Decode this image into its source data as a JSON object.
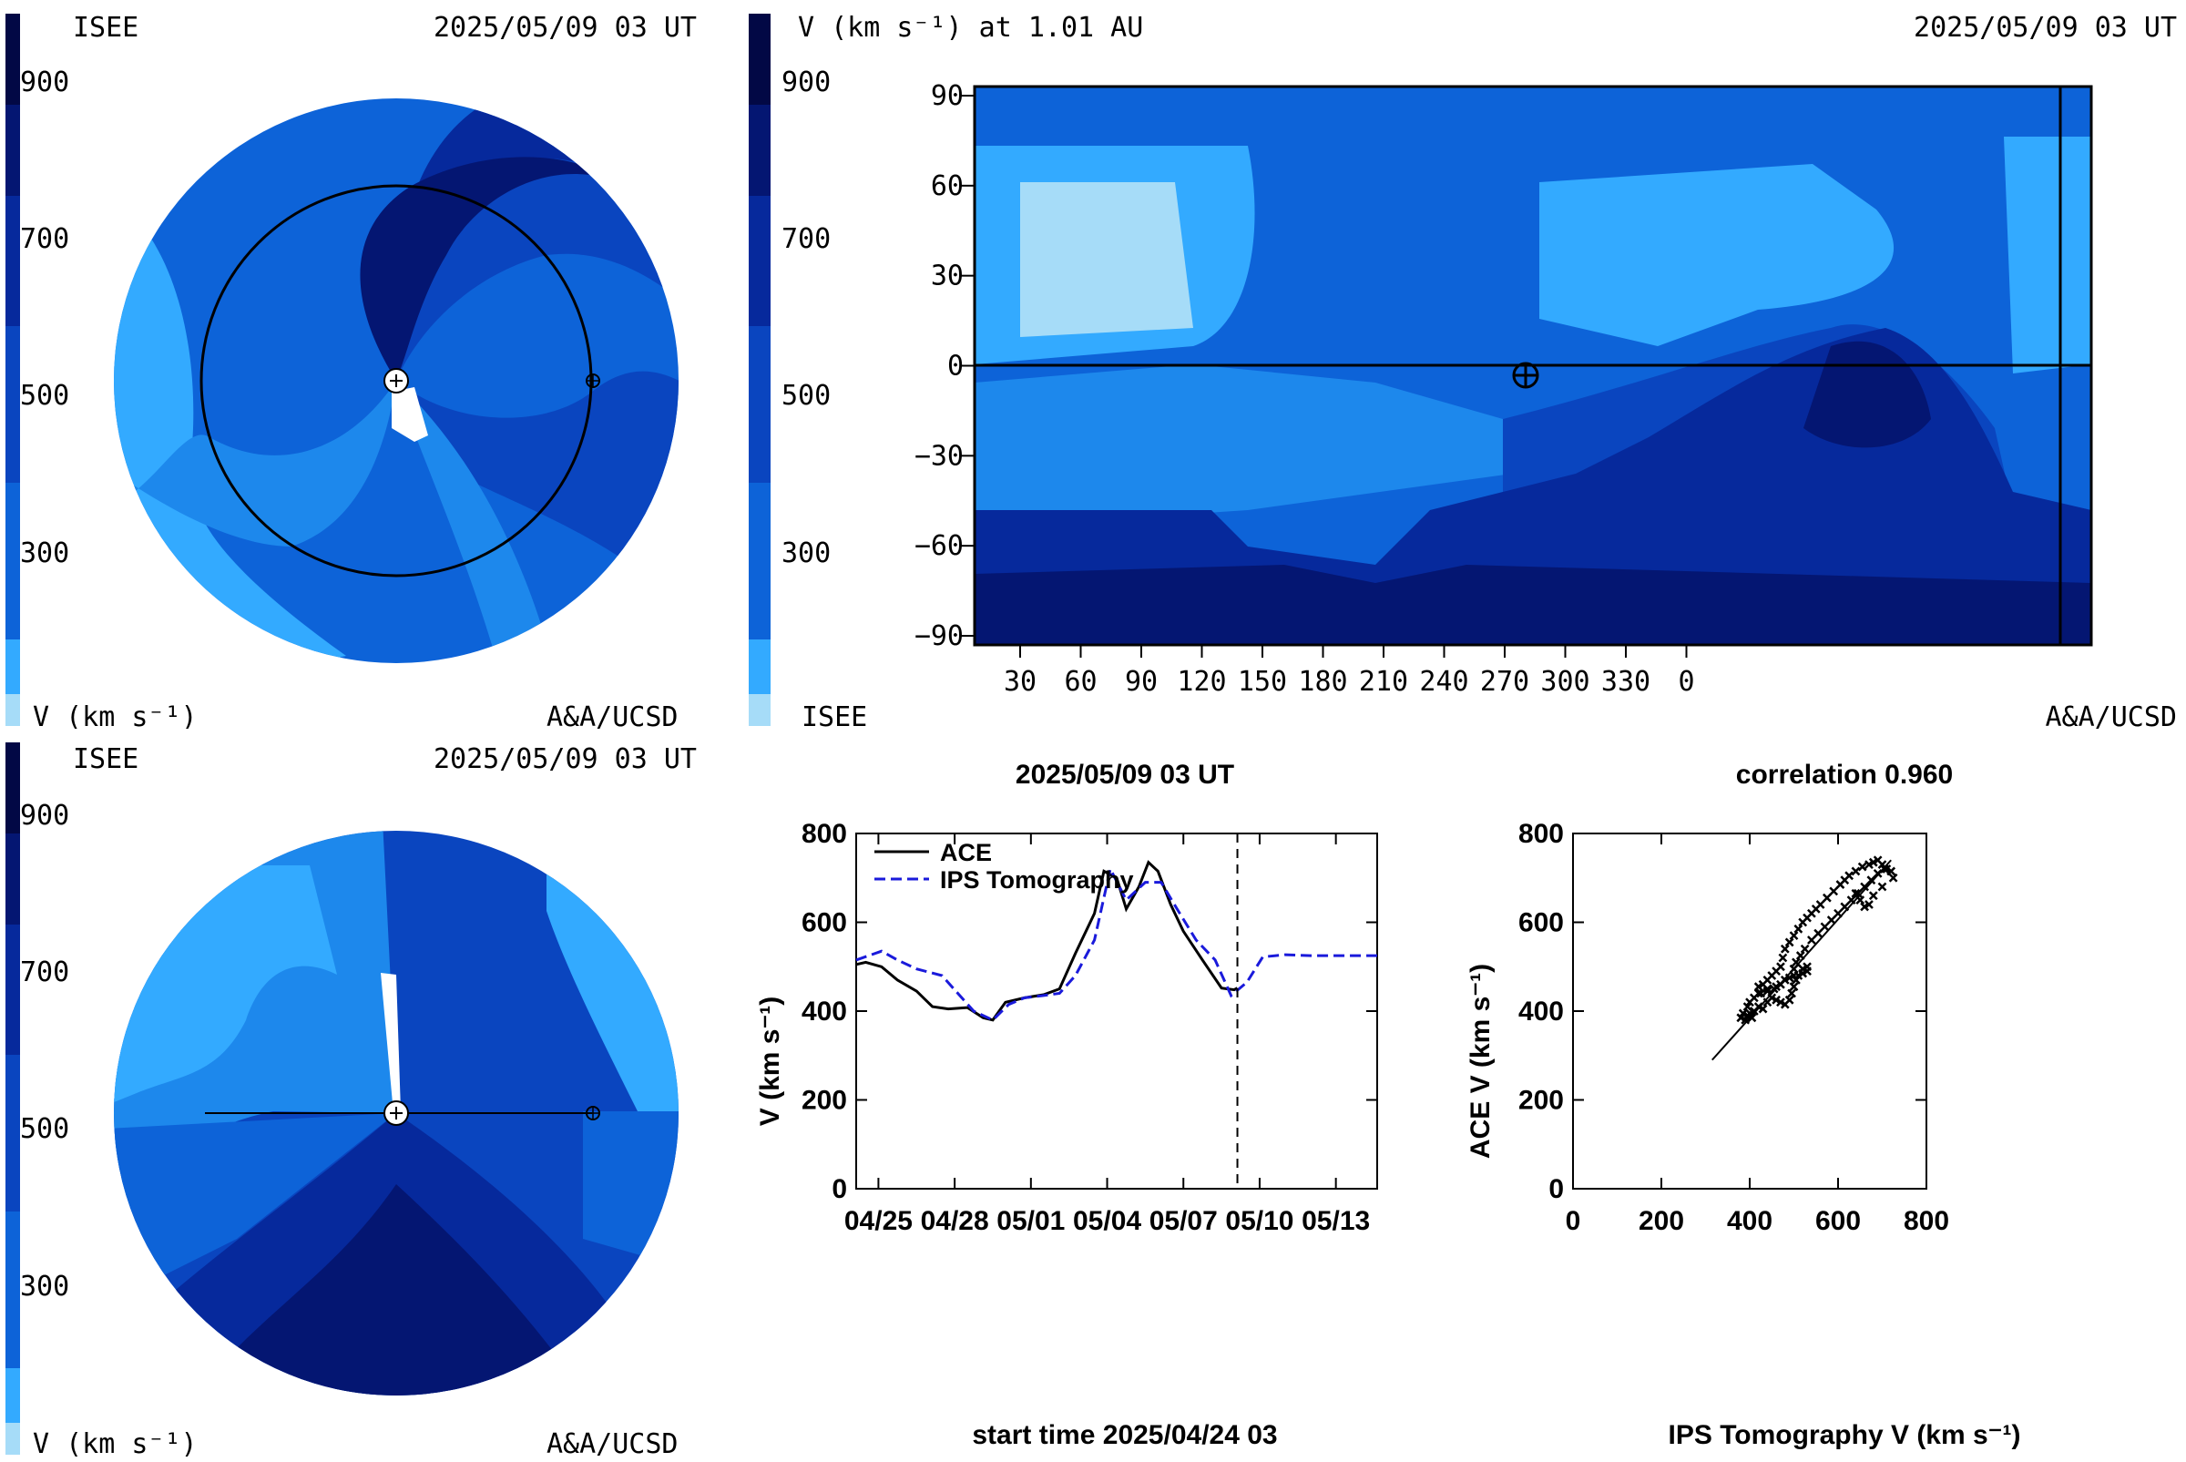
{
  "colorbar_ticks": [
    "900",
    "700",
    "500",
    "300"
  ],
  "colors": {
    "b0": "#a6dcf8",
    "b1": "#33aaff",
    "b2": "#1d88ec",
    "b3": "#0d63d8",
    "b4": "#0a45bf",
    "b5": "#06299c",
    "b6": "#041672",
    "b7": "#020845",
    "ace": "#000000",
    "ips": "#1a1adb"
  },
  "polar_top": {
    "label_left": "ISEE",
    "timestamp": "2025/05/09 03 UT",
    "colorbar_label": "V (km s⁻¹)",
    "credit": "A&A/UCSD"
  },
  "polar_bottom": {
    "label_left": "ISEE",
    "timestamp": "2025/05/09 03 UT",
    "colorbar_label": "V (km s⁻¹)",
    "credit": "A&A/UCSD"
  },
  "map": {
    "title": "V (km s⁻¹) at 1.01 AU",
    "timestamp": "2025/05/09 03 UT",
    "label_left": "ISEE",
    "credit": "A&A/UCSD",
    "yticks": [
      "90",
      "60",
      "30",
      "0",
      "−30",
      "−60",
      "−90"
    ],
    "xticks": [
      "30",
      "60",
      "90",
      "120",
      "150",
      "180",
      "210",
      "240",
      "270",
      "300",
      "330",
      "0"
    ]
  },
  "chart_data": [
    {
      "type": "line",
      "title": "2025/05/09 03 UT",
      "xlabel": "start time 2025/04/24 03",
      "ylabel": "V (km s⁻¹)",
      "ylim": [
        0,
        800
      ],
      "xlim_days": [
        0,
        20.5
      ],
      "xtick_labels": [
        "04/25",
        "04/28",
        "05/01",
        "05/04",
        "05/07",
        "05/10",
        "05/13"
      ],
      "yticks": [
        "0",
        "200",
        "400",
        "600",
        "800"
      ],
      "current_time_marker": "2025/05/09 03",
      "legend": [
        "ACE",
        "IPS Tomography"
      ],
      "series": [
        {
          "name": "ACE",
          "style": "solid",
          "x": [
            "04/24 03",
            "04/24 12",
            "04/25 03",
            "04/25 18",
            "04/26 12",
            "04/27 03",
            "04/27 18",
            "04/28 12",
            "04/29 03",
            "04/29 12",
            "04/30 00",
            "04/30 18",
            "05/01 12",
            "05/02 03",
            "05/02 18",
            "05/03 12",
            "05/03 21",
            "05/04 09",
            "05/04 18",
            "05/05 06",
            "05/05 15",
            "05/06 00",
            "05/06 12",
            "05/07 00",
            "05/07 18",
            "05/08 12",
            "05/09 00",
            "05/09 03"
          ],
          "values": [
            505,
            510,
            500,
            470,
            445,
            410,
            405,
            408,
            385,
            380,
            420,
            430,
            437,
            450,
            530,
            620,
            715,
            700,
            630,
            680,
            735,
            715,
            640,
            580,
            515,
            452,
            448,
            452
          ]
        },
        {
          "name": "IPS Tomography",
          "style": "dashed",
          "x": [
            "04/24 03",
            "04/25 03",
            "04/25 18",
            "04/26 12",
            "04/27 12",
            "04/28 03",
            "04/28 18",
            "04/29 12",
            "04/30 03",
            "04/30 18",
            "05/01 12",
            "05/02 03",
            "05/02 18",
            "05/03 12",
            "05/04 03",
            "05/04 18",
            "05/05 12",
            "05/06 03",
            "05/06 18",
            "05/07 12",
            "05/08 06",
            "05/08 21",
            "05/09 12",
            "05/10 03",
            "05/11 00",
            "05/12 00",
            "05/13 00",
            "05/14 15"
          ],
          "values": [
            515,
            535,
            515,
            495,
            480,
            440,
            400,
            380,
            415,
            430,
            435,
            440,
            480,
            560,
            720,
            650,
            690,
            690,
            630,
            560,
            515,
            435,
            465,
            522,
            527,
            525,
            525,
            525
          ]
        }
      ]
    },
    {
      "type": "scatter",
      "title": "correlation 0.960",
      "xlabel": "IPS Tomography V (km s⁻¹)",
      "ylabel": "ACE V (km s⁻¹)",
      "xlim": [
        0,
        800
      ],
      "ylim": [
        0,
        800
      ],
      "xticks": [
        "0",
        "200",
        "400",
        "600",
        "800"
      ],
      "yticks": [
        "0",
        "200",
        "400",
        "600",
        "800"
      ],
      "points": [
        [
          380,
          385
        ],
        [
          385,
          395
        ],
        [
          390,
          380
        ],
        [
          395,
          390
        ],
        [
          400,
          395
        ],
        [
          405,
          385
        ],
        [
          410,
          400
        ],
        [
          420,
          410
        ],
        [
          430,
          405
        ],
        [
          440,
          420
        ],
        [
          450,
          430
        ],
        [
          460,
          425
        ],
        [
          470,
          420
        ],
        [
          480,
          415
        ],
        [
          490,
          425
        ],
        [
          495,
          440
        ],
        [
          500,
          455
        ],
        [
          505,
          470
        ],
        [
          510,
          480
        ],
        [
          520,
          495
        ],
        [
          530,
          500
        ],
        [
          530,
          490
        ],
        [
          520,
          485
        ],
        [
          500,
          480
        ],
        [
          480,
          470
        ],
        [
          460,
          455
        ],
        [
          440,
          450
        ],
        [
          425,
          440
        ],
        [
          410,
          430
        ],
        [
          400,
          420
        ],
        [
          395,
          410
        ],
        [
          420,
          455
        ],
        [
          430,
          460
        ],
        [
          440,
          470
        ],
        [
          450,
          480
        ],
        [
          460,
          490
        ],
        [
          470,
          500
        ],
        [
          475,
          520
        ],
        [
          480,
          540
        ],
        [
          490,
          555
        ],
        [
          500,
          570
        ],
        [
          510,
          585
        ],
        [
          520,
          600
        ],
        [
          530,
          610
        ],
        [
          540,
          620
        ],
        [
          550,
          630
        ],
        [
          560,
          640
        ],
        [
          575,
          655
        ],
        [
          590,
          670
        ],
        [
          605,
          685
        ],
        [
          615,
          695
        ],
        [
          625,
          705
        ],
        [
          640,
          715
        ],
        [
          655,
          725
        ],
        [
          670,
          730
        ],
        [
          680,
          735
        ],
        [
          690,
          740
        ],
        [
          700,
          730
        ],
        [
          710,
          720
        ],
        [
          720,
          715
        ],
        [
          725,
          700
        ],
        [
          700,
          680
        ],
        [
          680,
          660
        ],
        [
          670,
          640
        ],
        [
          660,
          635
        ],
        [
          650,
          650
        ],
        [
          640,
          665
        ],
        [
          420,
          440
        ],
        [
          440,
          445
        ],
        [
          455,
          450
        ],
        [
          470,
          460
        ],
        [
          490,
          475
        ],
        [
          500,
          495
        ],
        [
          505,
          510
        ],
        [
          515,
          525
        ],
        [
          525,
          540
        ],
        [
          540,
          560
        ],
        [
          555,
          575
        ],
        [
          570,
          590
        ],
        [
          585,
          605
        ],
        [
          600,
          620
        ],
        [
          615,
          635
        ],
        [
          630,
          650
        ],
        [
          645,
          665
        ],
        [
          660,
          680
        ],
        [
          675,
          695
        ],
        [
          690,
          710
        ],
        [
          705,
          720
        ]
      ],
      "fit_line": [
        [
          315,
          290
        ],
        [
          720,
          740
        ]
      ]
    }
  ]
}
